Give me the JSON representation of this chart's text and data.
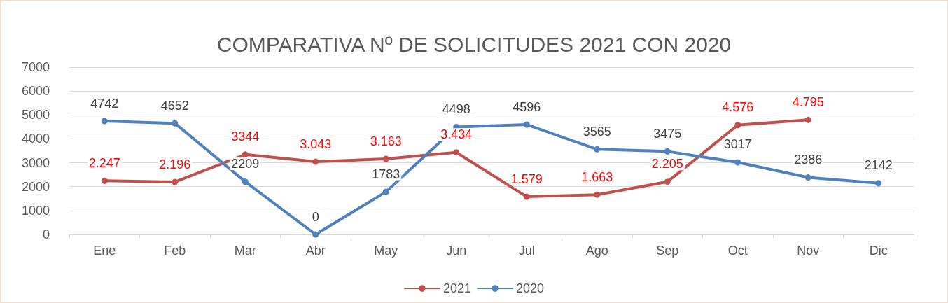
{
  "chart_data": {
    "type": "line",
    "title": "COMPARATIVA Nº DE SOLICITUDES 2021 CON 2020",
    "categories": [
      "Ene",
      "Feb",
      "Mar",
      "Abr",
      "May",
      "Jun",
      "Jul",
      "Ago",
      "Sep",
      "Oct",
      "Nov",
      "Dic"
    ],
    "series": [
      {
        "name": "2021",
        "color": "#c0504d",
        "values": [
          2247,
          2196,
          3344,
          3043,
          3163,
          3434,
          1579,
          1663,
          2205,
          4576,
          4795,
          null
        ],
        "value_labels": [
          "2.247",
          "2.196",
          "3344",
          "3.043",
          "3.163",
          "3.434",
          "1.579",
          "1.663",
          "2.205",
          "4.576",
          "4.795",
          null
        ]
      },
      {
        "name": "2020",
        "color": "#4f81bd",
        "values": [
          4742,
          4652,
          2209,
          0,
          1783,
          4498,
          4596,
          3565,
          3475,
          3017,
          2386,
          2142
        ],
        "value_labels": [
          "4742",
          "4652",
          "2209",
          "0",
          "1783",
          "4498",
          "4596",
          "3565",
          "3475",
          "3017",
          "2386",
          "2142"
        ]
      }
    ],
    "ylim": [
      0,
      7000
    ],
    "yticks": [
      0,
      1000,
      2000,
      3000,
      4000,
      5000,
      6000,
      7000
    ],
    "grid": "y",
    "legend": "bottom",
    "marker": "circle",
    "line_style": "solid"
  }
}
